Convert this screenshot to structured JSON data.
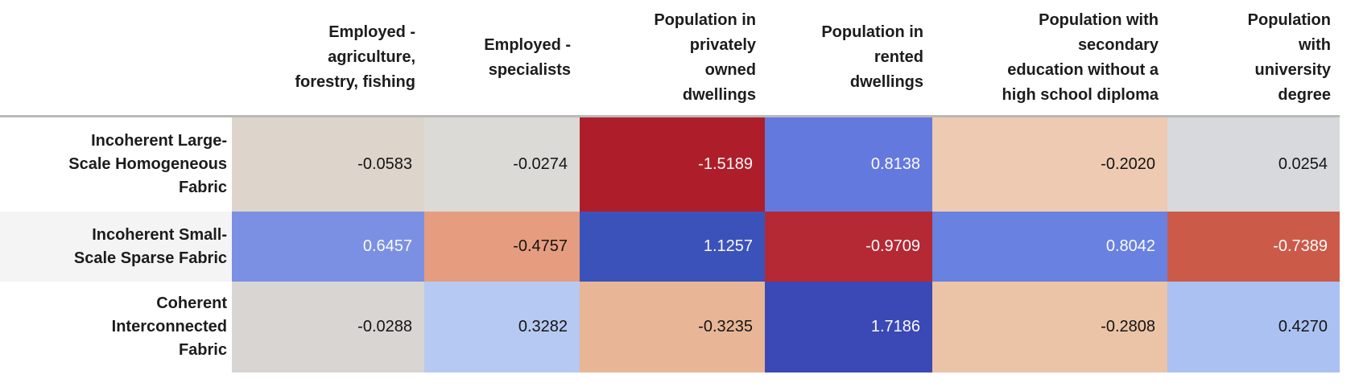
{
  "chart_data": {
    "type": "heatmap",
    "title": "",
    "colormap": "RdBu diverging (dark blue = high positive, dark red = strong negative)",
    "legend": "none",
    "grid": "off",
    "columns": [
      "Employed -\nagriculture,\nforestry, fishing",
      "Employed -\nspecialists",
      "Population in\nprivately\nowned\ndwellings",
      "Population in\nrented\ndwellings",
      "Population with\nsecondary\neducation without a\nhigh school diploma",
      "Population\nwith\nuniversity\ndegree"
    ],
    "rows": [
      "Incoherent Large-\nScale Homogeneous\nFabric",
      "Incoherent Small-\nScale Sparse Fabric",
      "Coherent\nInterconnected\nFabric"
    ],
    "values": [
      [
        -0.0583,
        -0.0274,
        -1.5189,
        0.8138,
        -0.202,
        0.0254
      ],
      [
        0.6457,
        -0.4757,
        1.1257,
        -0.9709,
        0.8042,
        -0.7389
      ],
      [
        -0.0288,
        0.3282,
        -0.3235,
        1.7186,
        -0.2808,
        0.427
      ]
    ],
    "display_values": [
      [
        "-0.0583",
        "-0.0274",
        "-1.5189",
        "0.8138",
        "-0.2020",
        "0.0254"
      ],
      [
        "0.6457",
        "-0.4757",
        "1.1257",
        "-0.9709",
        "0.8042",
        "-0.7389"
      ],
      [
        "-0.0288",
        "0.3282",
        "-0.3235",
        "1.7186",
        "-0.2808",
        "0.4270"
      ]
    ],
    "cell_colors": [
      [
        "#ddd4cb",
        "#dcdad7",
        "#ae1e2a",
        "#6379de",
        "#edcab1",
        "#d7d9dd"
      ],
      [
        "#7b90e3",
        "#e69c7e",
        "#3b52ba",
        "#b42934",
        "#6981e0",
        "#cc5a48"
      ],
      [
        "#d8d5d2",
        "#b6c9f2",
        "#e8b696",
        "#3a49b6",
        "#ebc4a7",
        "#aac1f2"
      ]
    ],
    "text_colors": [
      [
        "#141414",
        "#141414",
        "#fbfbfb",
        "#fbfbfb",
        "#141414",
        "#141414"
      ],
      [
        "#fbfbfb",
        "#141414",
        "#fbfbfb",
        "#fbfbfb",
        "#fbfbfb",
        "#fbfbfb"
      ],
      [
        "#141414",
        "#141414",
        "#141414",
        "#fbfbfb",
        "#141414",
        "#141414"
      ]
    ],
    "accent_colors": {
      "header_divider": "#b9b9b9",
      "row_label_stripe": "#f4f4f4"
    }
  }
}
